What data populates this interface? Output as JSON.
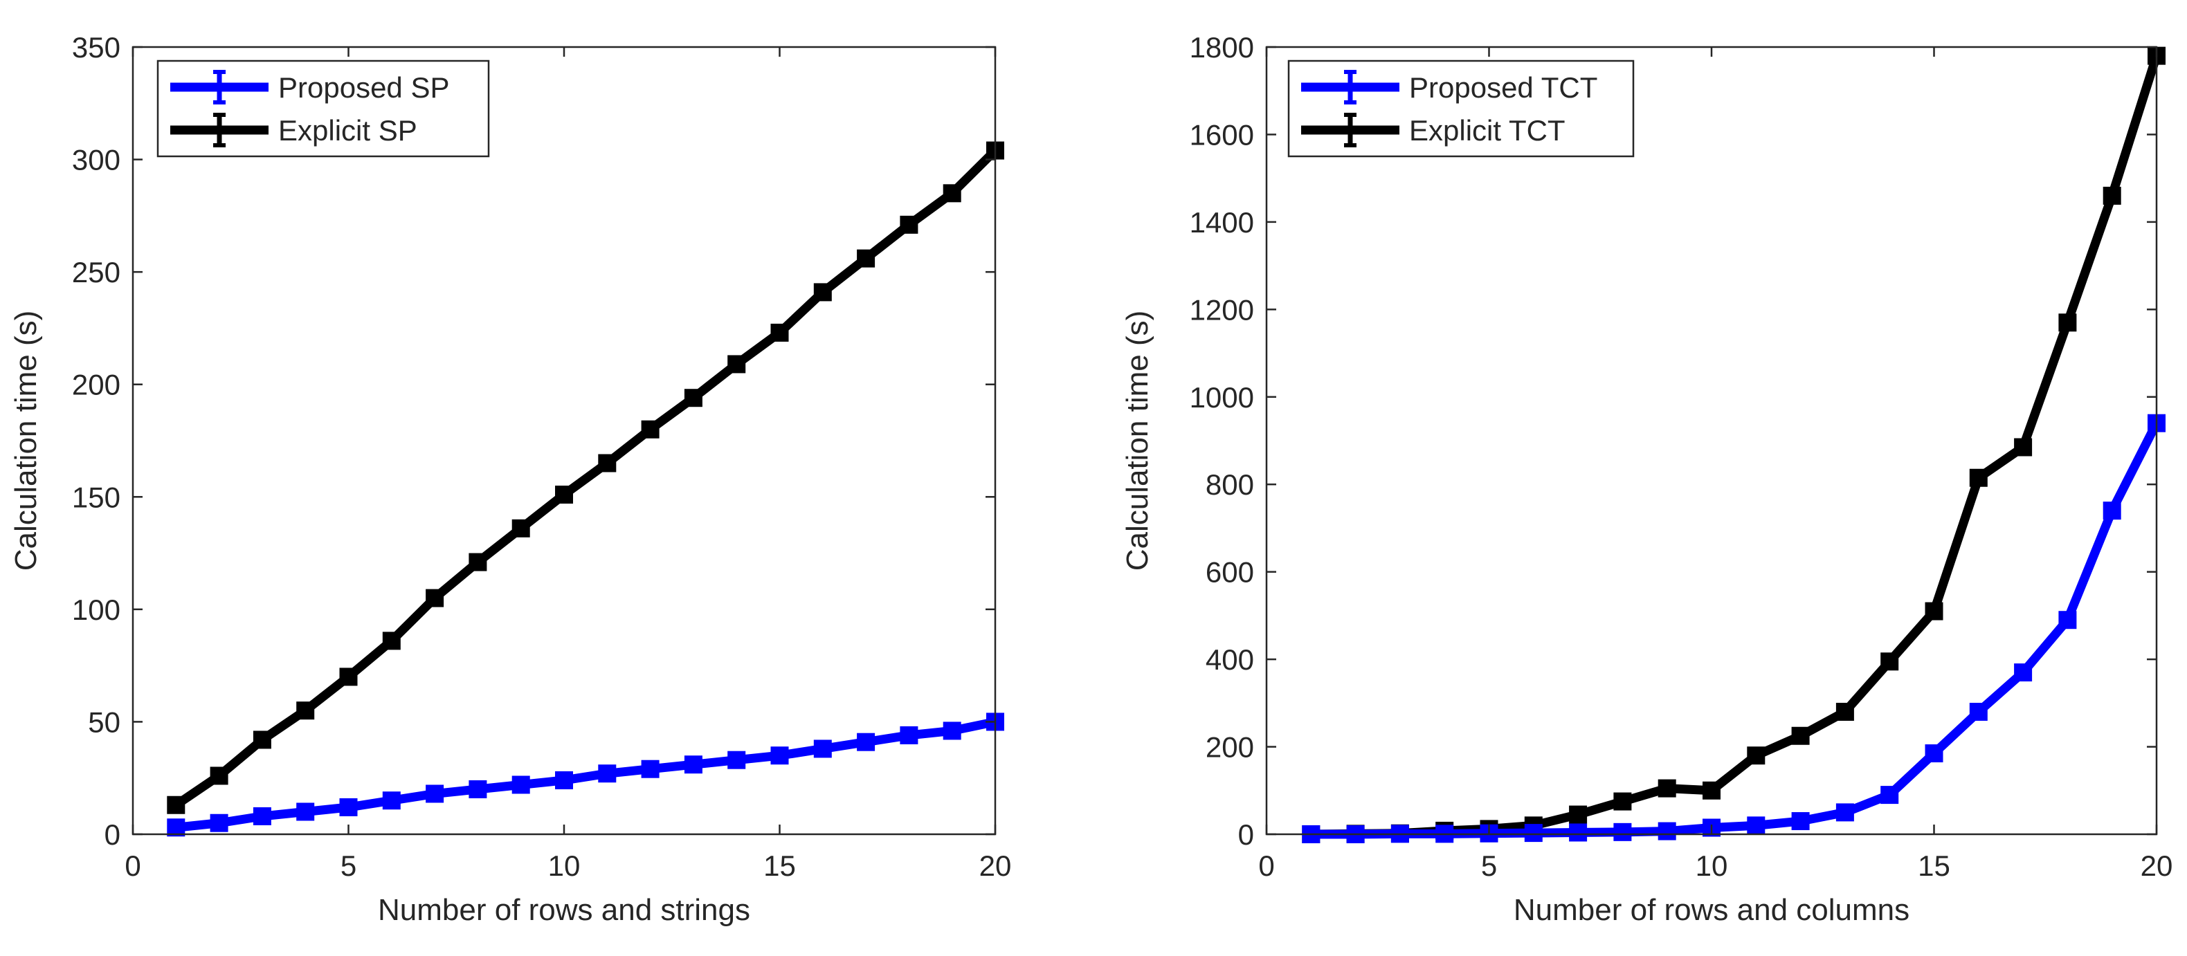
{
  "chart_data": [
    {
      "type": "line",
      "title": "",
      "xlabel": "Number of rows and strings",
      "ylabel": "Calculation time (s)",
      "xlim": [
        0,
        20
      ],
      "ylim": [
        0,
        350
      ],
      "xticks": [
        0,
        5,
        10,
        15,
        20
      ],
      "yticks": [
        0,
        50,
        100,
        150,
        200,
        250,
        300,
        350
      ],
      "grid": false,
      "legend_position": "top-left",
      "x": [
        1,
        2,
        3,
        4,
        5,
        6,
        7,
        8,
        9,
        10,
        11,
        12,
        13,
        14,
        15,
        16,
        17,
        18,
        19,
        20
      ],
      "series": [
        {
          "name": "Proposed SP",
          "color": "#0000ff",
          "values": [
            3,
            5,
            8,
            10,
            12,
            15,
            18,
            20,
            22,
            24,
            27,
            29,
            31,
            33,
            35,
            38,
            41,
            44,
            46,
            50
          ]
        },
        {
          "name": "Explicit SP",
          "color": "#000000",
          "values": [
            13,
            26,
            42,
            55,
            70,
            86,
            105,
            121,
            136,
            151,
            165,
            180,
            194,
            209,
            223,
            241,
            256,
            271,
            285,
            304
          ]
        }
      ]
    },
    {
      "type": "line",
      "title": "",
      "xlabel": "Number of rows and columns",
      "ylabel": "Calculation time (s)",
      "xlim": [
        0,
        20
      ],
      "ylim": [
        0,
        1800
      ],
      "xticks": [
        0,
        5,
        10,
        15,
        20
      ],
      "yticks": [
        0,
        200,
        400,
        600,
        800,
        1000,
        1200,
        1400,
        1600,
        1800
      ],
      "grid": false,
      "legend_position": "top-left",
      "x": [
        1,
        2,
        3,
        4,
        5,
        6,
        7,
        8,
        9,
        10,
        11,
        12,
        13,
        14,
        15,
        16,
        17,
        18,
        19,
        20
      ],
      "series": [
        {
          "name": "Proposed TCT",
          "color": "#0000ff",
          "values": [
            0,
            0,
            1,
            1,
            2,
            3,
            4,
            5,
            7,
            15,
            20,
            30,
            50,
            90,
            185,
            280,
            370,
            490,
            740,
            940
          ]
        },
        {
          "name": "Explicit TCT",
          "color": "#000000",
          "values": [
            0,
            1,
            2,
            8,
            12,
            20,
            45,
            75,
            105,
            100,
            180,
            225,
            280,
            395,
            510,
            815,
            885,
            1170,
            1460,
            1780
          ]
        }
      ]
    }
  ]
}
